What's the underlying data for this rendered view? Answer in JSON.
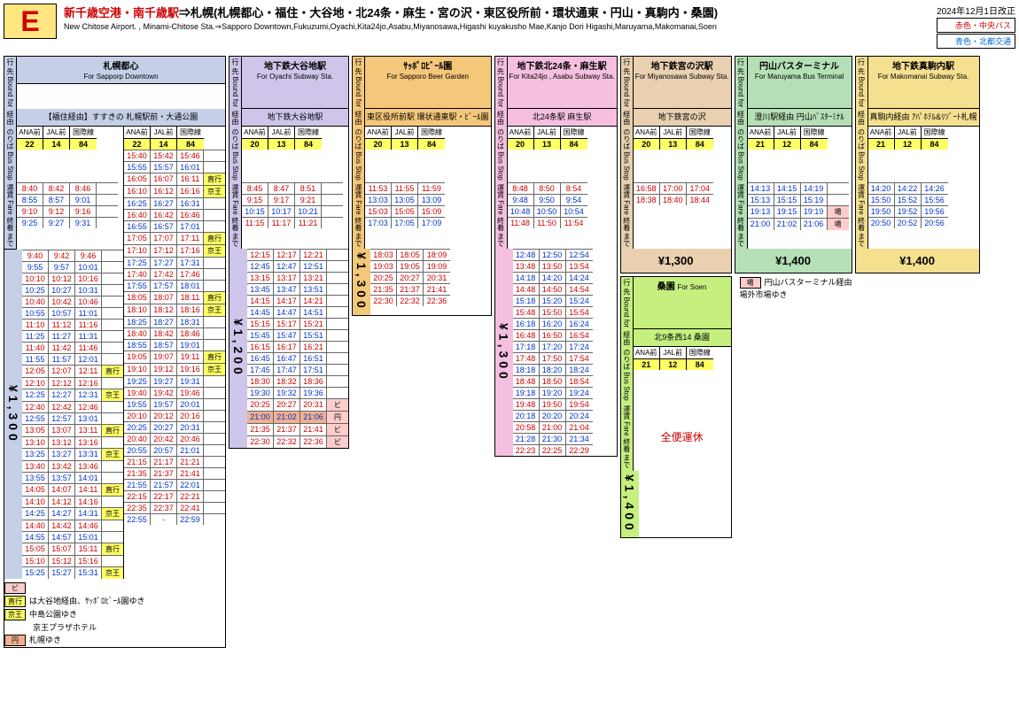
{
  "header": {
    "badge": "E",
    "jp_red": "新千歳空港・南千歳駅",
    "jp_black": "⇒札幌(札幌都心・福住・大谷地・北24条・麻生・宮の沢・東区役所前・環状通東・円山・真駒内・桑園)",
    "en": "New Chitose Airport. , Minami-Chitose Sta.⇒Sapporo Downtown,Fukuzumi,Oyachi,Kita24jo,Asabu,Miyanosawa,Higashi kuyakusho Mae,Kanjo Dori Higashi,Maruyama,Makomanai,Soen",
    "date": "2024年12月1日改正",
    "legend_red": "赤色・中央バス",
    "legend_blue": "青色・北都交通"
  },
  "labels": {
    "bound": "行 先\nBound\nfor",
    "via": "経由",
    "stop": "のりば\nBus\nStop",
    "fare": "運賃\nFare\n終着\nまで",
    "ana": "ANA前",
    "jal": "JAL前",
    "intl": "国際線"
  },
  "blocks": {
    "sapporo": {
      "dest_jp": "札幌都心",
      "dest_en": "For Sapporp Downtown",
      "via": "【福住経由】すすきの\n札幌駅前・大通公園",
      "stops": [
        "22",
        "14",
        "84"
      ],
      "fare": "¥1,300",
      "left": [
        [
          "8:40",
          "8:42",
          "8:46",
          "",
          "red"
        ],
        [
          "8:55",
          "8:57",
          "9:01",
          "",
          "blue"
        ],
        [
          "9:10",
          "9:12",
          "9:16",
          "",
          "red"
        ],
        [
          "9:25",
          "9:27",
          "9:31",
          "",
          "blue"
        ],
        [
          "9:40",
          "9:42",
          "9:46",
          "",
          "red"
        ],
        [
          "9:55",
          "9:57",
          "10:01",
          "",
          "blue"
        ],
        [
          "10:10",
          "10:12",
          "10:16",
          "",
          "red"
        ],
        [
          "10:25",
          "10:27",
          "10:31",
          "",
          "blue"
        ],
        [
          "10:40",
          "10:42",
          "10:46",
          "",
          "red"
        ],
        [
          "10:55",
          "10:57",
          "11:01",
          "",
          "blue"
        ],
        [
          "11:10",
          "11:12",
          "11:16",
          "",
          "red"
        ],
        [
          "11:25",
          "11:27",
          "11:31",
          "",
          "blue"
        ],
        [
          "11:40",
          "11:42",
          "11:46",
          "",
          "red"
        ],
        [
          "11:55",
          "11:57",
          "12:01",
          "",
          "blue"
        ],
        [
          "12:05",
          "12:07",
          "12:11",
          "直行",
          "red"
        ],
        [
          "12:10",
          "12:12",
          "12:16",
          "",
          "red"
        ],
        [
          "12:25",
          "12:27",
          "12:31",
          "京王",
          "blue"
        ],
        [
          "12:40",
          "12:42",
          "12:46",
          "",
          "red"
        ],
        [
          "12:55",
          "12:57",
          "13:01",
          "",
          "blue"
        ],
        [
          "13:05",
          "13:07",
          "13:11",
          "直行",
          "red"
        ],
        [
          "13:10",
          "13:12",
          "13:16",
          "",
          "red"
        ],
        [
          "13:25",
          "13:27",
          "13:31",
          "京王",
          "blue"
        ],
        [
          "13:40",
          "13:42",
          "13:46",
          "",
          "red"
        ],
        [
          "13:55",
          "13:57",
          "14:01",
          "",
          "blue"
        ],
        [
          "14:05",
          "14:07",
          "14:11",
          "直行",
          "red"
        ],
        [
          "14:10",
          "14:12",
          "14:16",
          "",
          "red"
        ],
        [
          "14:25",
          "14:27",
          "14:31",
          "京王",
          "blue"
        ],
        [
          "14:40",
          "14:42",
          "14:46",
          "",
          "red"
        ],
        [
          "14:55",
          "14:57",
          "15:01",
          "",
          "blue"
        ],
        [
          "15:05",
          "15:07",
          "15:11",
          "直行",
          "red"
        ],
        [
          "15:10",
          "15:12",
          "15:16",
          "",
          "red"
        ],
        [
          "15:25",
          "15:27",
          "15:31",
          "京王",
          "blue"
        ]
      ],
      "right": [
        [
          "15:40",
          "15:42",
          "15:46",
          "",
          "red"
        ],
        [
          "15:55",
          "15:57",
          "16:01",
          "",
          "blue"
        ],
        [
          "16:05",
          "16:07",
          "16:11",
          "直行",
          "red"
        ],
        [
          "16:10",
          "16:12",
          "16:16",
          "京王",
          "red"
        ],
        [
          "16:25",
          "16:27",
          "16:31",
          "",
          "blue"
        ],
        [
          "16:40",
          "16:42",
          "16:46",
          "",
          "red"
        ],
        [
          "16:55",
          "16:57",
          "17:01",
          "",
          "blue"
        ],
        [
          "17:05",
          "17:07",
          "17:11",
          "直行",
          "red"
        ],
        [
          "17:10",
          "17:12",
          "17:16",
          "京王",
          "red"
        ],
        [
          "17:25",
          "17:27",
          "17:31",
          "",
          "blue"
        ],
        [
          "17:40",
          "17:42",
          "17:46",
          "",
          "red"
        ],
        [
          "17:55",
          "17:57",
          "18:01",
          "",
          "blue"
        ],
        [
          "18:05",
          "18:07",
          "18:11",
          "直行",
          "red"
        ],
        [
          "18:10",
          "18:12",
          "18:16",
          "京王",
          "red"
        ],
        [
          "18:25",
          "18:27",
          "18:31",
          "",
          "blue"
        ],
        [
          "18:40",
          "18:42",
          "18:46",
          "",
          "red"
        ],
        [
          "18:55",
          "18:57",
          "19:01",
          "",
          "blue"
        ],
        [
          "19:05",
          "19:07",
          "19:11",
          "直行",
          "red"
        ],
        [
          "19:10",
          "19:12",
          "19:16",
          "京王",
          "red"
        ],
        [
          "19:25",
          "19:27",
          "19:31",
          "",
          "blue"
        ],
        [
          "19:40",
          "19:42",
          "19:46",
          "",
          "red"
        ],
        [
          "19:55",
          "19:57",
          "20:01",
          "",
          "blue"
        ],
        [
          "20:10",
          "20:12",
          "20:16",
          "",
          "red"
        ],
        [
          "20:25",
          "20:27",
          "20:31",
          "",
          "blue"
        ],
        [
          "20:40",
          "20:42",
          "20:46",
          "",
          "red"
        ],
        [
          "20:55",
          "20:57",
          "21:01",
          "",
          "blue"
        ],
        [
          "21:15",
          "21:17",
          "21:21",
          "",
          "red"
        ],
        [
          "21:35",
          "21:37",
          "21:41",
          "",
          "red"
        ],
        [
          "21:55",
          "21:57",
          "22:01",
          "",
          "blue"
        ],
        [
          "22:15",
          "22:17",
          "22:21",
          "",
          "red"
        ],
        [
          "22:35",
          "22:37",
          "22:41",
          "",
          "red"
        ],
        [
          "22:55",
          "-",
          "22:59",
          "",
          "blue"
        ]
      ]
    },
    "oyachi": {
      "dest_jp": "地下鉄大谷地駅",
      "dest_en": "For Oyachi Subway Sta.",
      "via": "地下鉄大谷地駅",
      "stops": [
        "20",
        "13",
        "84"
      ],
      "fare": "¥1,200",
      "times": [
        [
          "8:45",
          "8:47",
          "8:51",
          "",
          "red"
        ],
        [
          "9:15",
          "9:17",
          "9:21",
          "",
          "red"
        ],
        [
          "10:15",
          "10:17",
          "10:21",
          "",
          "blue"
        ],
        [
          "11:15",
          "11:17",
          "11:21",
          "",
          "red"
        ],
        [
          "12:15",
          "12:17",
          "12:21",
          "",
          "red"
        ],
        [
          "12:45",
          "12:47",
          "12:51",
          "",
          "blue"
        ],
        [
          "13:15",
          "13:17",
          "13:21",
          "",
          "red"
        ],
        [
          "13:45",
          "13:47",
          "13:51",
          "",
          "blue"
        ],
        [
          "14:15",
          "14:17",
          "14:21",
          "",
          "red"
        ],
        [
          "14:45",
          "14:47",
          "14:51",
          "",
          "blue"
        ],
        [
          "15:15",
          "15:17",
          "15:21",
          "",
          "red"
        ],
        [
          "15:45",
          "15:47",
          "15:51",
          "",
          "blue"
        ],
        [
          "16:15",
          "16:17",
          "16:21",
          "",
          "red"
        ],
        [
          "16:45",
          "16:47",
          "16:51",
          "",
          "blue"
        ],
        [
          "17:45",
          "17:47",
          "17:51",
          "",
          "blue"
        ],
        [
          "18:30",
          "18:32",
          "18:36",
          "",
          "red"
        ],
        [
          "19:30",
          "19:32",
          "19:36",
          "",
          "blue"
        ],
        [
          "20:25",
          "20:27",
          "20:31",
          "ビ",
          "red"
        ],
        [
          "21:00",
          "21:02",
          "21:06",
          "円",
          "blue"
        ],
        [
          "21:35",
          "21:37",
          "21:41",
          "ビ",
          "red"
        ],
        [
          "22:30",
          "22:32",
          "22:36",
          "ビ",
          "red"
        ]
      ]
    },
    "beer": {
      "dest_jp": "ｻｯﾎﾟﾛﾋﾞｰﾙ園",
      "dest_en": "For Sapporo Beer Garden",
      "via": "東区役所前駅\n環状通東駅・ﾋﾞｰﾙ園",
      "stops": [
        "20",
        "13",
        "84"
      ],
      "fare": "¥1,300",
      "times": [
        [
          "11:53",
          "11:55",
          "11:59",
          "",
          "red"
        ],
        [
          "13:03",
          "13:05",
          "13:09",
          "",
          "blue"
        ],
        [
          "15:03",
          "15:05",
          "15:09",
          "",
          "red"
        ],
        [
          "17:03",
          "17:05",
          "17:09",
          "",
          "blue"
        ],
        [
          "18:03",
          "18:05",
          "18:09",
          "",
          "red"
        ],
        [
          "19:03",
          "19:05",
          "19:09",
          "",
          "red"
        ],
        [
          "20:25",
          "20:27",
          "20:31",
          "",
          "red"
        ],
        [
          "21:35",
          "21:37",
          "21:41",
          "",
          "red"
        ],
        [
          "22:30",
          "22:32",
          "22:36",
          "",
          "red"
        ]
      ]
    },
    "kita24": {
      "dest_jp": "地下鉄北24条・麻生駅",
      "dest_en": "For Kita24jo , Asabu Subway Sta.",
      "via": "北24条駅\n麻生駅",
      "stops": [
        "20",
        "13",
        "84"
      ],
      "fare": "¥1,300",
      "times": [
        [
          "8:48",
          "8:50",
          "8:54",
          "",
          "red"
        ],
        [
          "9:48",
          "9:50",
          "9:54",
          "",
          "blue"
        ],
        [
          "10:48",
          "10:50",
          "10:54",
          "",
          "blue"
        ],
        [
          "11:48",
          "11:50",
          "11:54",
          "",
          "red"
        ],
        [
          "12:48",
          "12:50",
          "12:54",
          "",
          "blue"
        ],
        [
          "13:48",
          "13:50",
          "13:54",
          "",
          "red"
        ],
        [
          "14:18",
          "14:20",
          "14:24",
          "",
          "blue"
        ],
        [
          "14:48",
          "14:50",
          "14:54",
          "",
          "red"
        ],
        [
          "15:18",
          "15:20",
          "15:24",
          "",
          "blue"
        ],
        [
          "15:48",
          "15:50",
          "15:54",
          "",
          "red"
        ],
        [
          "16:18",
          "16:20",
          "16:24",
          "",
          "blue"
        ],
        [
          "16:48",
          "16:50",
          "16:54",
          "",
          "red"
        ],
        [
          "17:18",
          "17:20",
          "17:24",
          "",
          "blue"
        ],
        [
          "17:48",
          "17:50",
          "17:54",
          "",
          "red"
        ],
        [
          "18:18",
          "18:20",
          "18:24",
          "",
          "blue"
        ],
        [
          "18:48",
          "18:50",
          "18:54",
          "",
          "red"
        ],
        [
          "19:18",
          "19:20",
          "19:24",
          "",
          "blue"
        ],
        [
          "19:48",
          "19:50",
          "19:54",
          "",
          "red"
        ],
        [
          "20:18",
          "20:20",
          "20:24",
          "",
          "blue"
        ],
        [
          "20:58",
          "21:00",
          "21:04",
          "",
          "red"
        ],
        [
          "21:28",
          "21:30",
          "21:34",
          "",
          "blue"
        ],
        [
          "22:23",
          "22:25",
          "22:29",
          "",
          "red"
        ]
      ]
    },
    "miyanosawa": {
      "dest_jp": "地下鉄宮の沢駅",
      "dest_en": "For Miyanosawa Subway Sta.",
      "via": "地下鉄宮の沢",
      "stops": [
        "20",
        "13",
        "84"
      ],
      "fare": "¥1,300",
      "times": [
        [
          "16:58",
          "17:00",
          "17:04",
          "",
          "red"
        ],
        [
          "18:38",
          "18:40",
          "18:44",
          "",
          "red"
        ]
      ]
    },
    "maruyama": {
      "dest_jp": "円山バスターミナル",
      "dest_en": "For Maruyama Bus Terminal",
      "via": "澄川駅経由\n円山ﾊﾞｽﾀｰﾐﾅﾙ",
      "stops": [
        "21",
        "12",
        "84"
      ],
      "fare": "¥1,400",
      "times": [
        [
          "14:13",
          "14:15",
          "14:19",
          "",
          "blue"
        ],
        [
          "15:13",
          "15:15",
          "15:19",
          "",
          "blue"
        ],
        [
          "19:13",
          "19:15",
          "19:19",
          "場",
          "blue"
        ],
        [
          "21:00",
          "21:02",
          "21:06",
          "場",
          "blue"
        ]
      ]
    },
    "makomanai": {
      "dest_jp": "地下鉄真駒内駅",
      "dest_en": "For Makomanai Subway Sta.",
      "via": "真駒内経由\nｱﾊﾟﾎﾃﾙ&ﾘｿﾞｰﾄ札幌",
      "stops": [
        "21",
        "12",
        "84"
      ],
      "fare": "¥1,400",
      "times": [
        [
          "14:20",
          "14:22",
          "14:26",
          "",
          "blue"
        ],
        [
          "15:50",
          "15:52",
          "15:56",
          "",
          "blue"
        ],
        [
          "19:50",
          "19:52",
          "19:56",
          "",
          "blue"
        ],
        [
          "20:50",
          "20:52",
          "20:56",
          "",
          "blue"
        ]
      ]
    },
    "soen": {
      "dest_jp": "桑園",
      "dest_en": "For Soen",
      "via": "北9条西14 桑園",
      "stops": [
        "21",
        "12",
        "84"
      ],
      "fare": "¥1,400",
      "suspended": "全便運休"
    }
  },
  "legend": {
    "bi": "ビ",
    "chokko": "直行",
    "chokko_text": "は大谷地経由、ｻｯﾎﾟﾛﾋﾞｰﾙ園ゆき",
    "keio": "京王",
    "keio_text": "中島公園ゆき",
    "keio2_text": "京王プラザホテル",
    "en": "円",
    "en_text": "札幌ゆき",
    "ba": "場",
    "ba_text": "円山バスターミナル経由\n場外市場ゆき"
  }
}
